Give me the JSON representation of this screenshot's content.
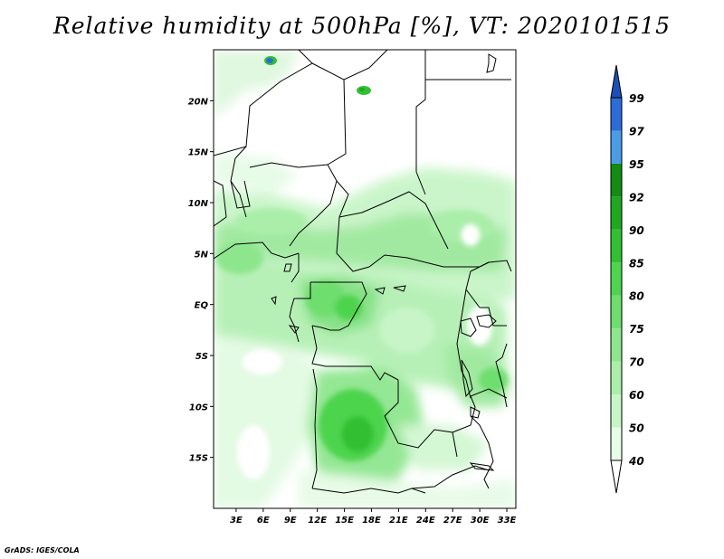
{
  "title": "Relative humidity at 500hPa [%], VT: 2020101515",
  "credit": "GrADS: IGES/COLA",
  "map": {
    "variable": "Relative humidity",
    "level": "500hPa",
    "unit": "%",
    "valid_time": "2020101515",
    "lon_labels": [
      "3E",
      "6E",
      "9E",
      "12E",
      "15E",
      "18E",
      "21E",
      "24E",
      "27E",
      "30E",
      "33E"
    ],
    "lon_values": [
      3,
      6,
      9,
      12,
      15,
      18,
      21,
      24,
      27,
      30,
      33
    ],
    "lat_labels": [
      "20N",
      "15N",
      "10N",
      "5N",
      "EQ",
      "5S",
      "10S",
      "15S"
    ],
    "lat_values": [
      20,
      15,
      10,
      5,
      0,
      -5,
      -10,
      -15
    ],
    "lon_range": [
      0.5,
      34
    ],
    "lat_range": [
      -20,
      25
    ]
  },
  "colorbar": {
    "levels": [
      "40",
      "50",
      "60",
      "70",
      "75",
      "80",
      "85",
      "90",
      "92",
      "95",
      "97",
      "99"
    ],
    "colors": [
      "#ffffff",
      "#e6ffe6",
      "#c8f5c8",
      "#aaeeaa",
      "#8de68d",
      "#6ede6e",
      "#4ed44e",
      "#32c032",
      "#20a820",
      "#128c12",
      "#4a9ce6",
      "#2c6cd8",
      "#1d4fb8"
    ]
  }
}
